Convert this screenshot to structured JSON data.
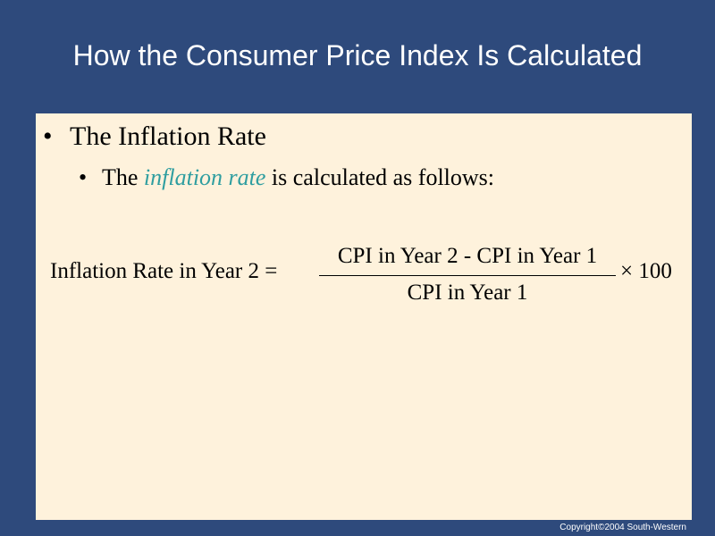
{
  "title": "How the Consumer Price Index Is Calculated",
  "bullets": [
    {
      "text": "The Inflation Rate",
      "sub": {
        "before": "The",
        "emphasis": "inflation rate",
        "after": "is calculated as follows:"
      }
    }
  ],
  "formula": {
    "lhs": "Inflation Rate in Year 2 =",
    "numerator": "CPI in Year 2 - CPI in Year 1",
    "denominator": "CPI in Year 1",
    "rhs": "× 100"
  },
  "footer": "Copyright©2004 South-Western"
}
